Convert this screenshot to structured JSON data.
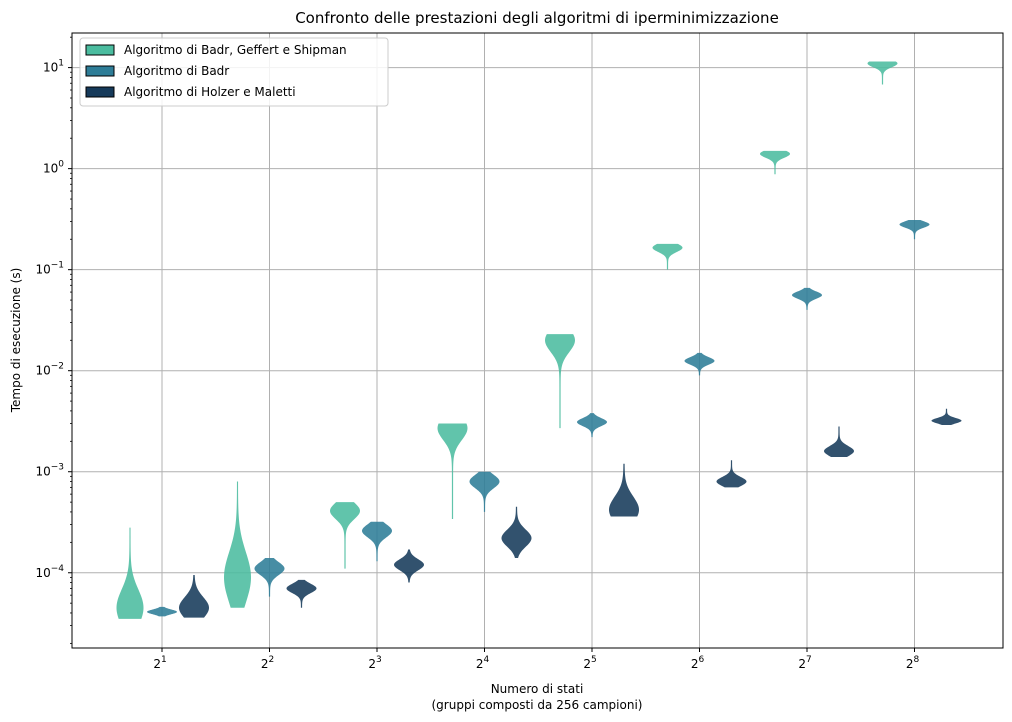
{
  "chart_data": {
    "type": "violin",
    "title": "Confronto delle prestazioni degli algoritmi di iperminimizzazione",
    "xlabel": "Numero di stati",
    "xlabel_sub": "(gruppi composti da 256 campioni)",
    "ylabel": "Tempo di esecuzione (s)",
    "yscale": "log",
    "ylim": [
      1.8e-05,
      22
    ],
    "x_ticks": [
      {
        "base": "2",
        "exp": "1"
      },
      {
        "base": "2",
        "exp": "2"
      },
      {
        "base": "2",
        "exp": "3"
      },
      {
        "base": "2",
        "exp": "4"
      },
      {
        "base": "2",
        "exp": "5"
      },
      {
        "base": "2",
        "exp": "6"
      },
      {
        "base": "2",
        "exp": "7"
      },
      {
        "base": "2",
        "exp": "8"
      }
    ],
    "y_ticks": [
      {
        "value": 0.0001,
        "base": "10",
        "exp": "−4"
      },
      {
        "value": 0.001,
        "base": "10",
        "exp": "−3"
      },
      {
        "value": 0.01,
        "base": "10",
        "exp": "−2"
      },
      {
        "value": 0.1,
        "base": "10",
        "exp": "−1"
      },
      {
        "value": 1,
        "base": "10",
        "exp": "0"
      },
      {
        "value": 10,
        "base": "10",
        "exp": "1"
      }
    ],
    "grid": true,
    "legend_position": "top-left",
    "series": [
      {
        "name": "Algoritmo di Badr, Geffert e Shipman",
        "color": "#4bbc9f",
        "violins": [
          {
            "n": 2,
            "min": 3.5e-05,
            "max": 0.00028,
            "mode": 4.5e-05,
            "width": 0.9,
            "sharp": 2.5
          },
          {
            "n": 4,
            "min": 4.5e-05,
            "max": 0.0008,
            "mode": 9e-05,
            "width": 0.9,
            "sharp": 2.5
          },
          {
            "n": 8,
            "min": 0.00011,
            "max": 0.0005,
            "mode": 0.00041,
            "width": 1.0,
            "sharp": 4
          },
          {
            "n": 16,
            "min": 0.00034,
            "max": 0.003,
            "mode": 0.0027,
            "width": 1.0,
            "sharp": 4
          },
          {
            "n": 32,
            "min": 0.0027,
            "max": 0.023,
            "mode": 0.02,
            "width": 1.0,
            "sharp": 4
          },
          {
            "n": 64,
            "min": 0.1,
            "max": 0.18,
            "mode": 0.165,
            "width": 1.0,
            "sharp": 3
          },
          {
            "n": 128,
            "min": 0.88,
            "max": 1.5,
            "mode": 1.4,
            "width": 1.0,
            "sharp": 3
          },
          {
            "n": 256,
            "min": 6.8,
            "max": 11.5,
            "mode": 11.0,
            "width": 1.0,
            "sharp": 3
          }
        ]
      },
      {
        "name": "Algoritmo di Badr",
        "color": "#2e7d97",
        "violins": [
          {
            "n": 2,
            "min": 3.7e-05,
            "max": 4.6e-05,
            "mode": 4.1e-05,
            "width": 1.0,
            "sharp": 2
          },
          {
            "n": 4,
            "min": 5.8e-05,
            "max": 0.00014,
            "mode": 0.00011,
            "width": 1.0,
            "sharp": 3
          },
          {
            "n": 8,
            "min": 0.00013,
            "max": 0.00032,
            "mode": 0.00026,
            "width": 1.0,
            "sharp": 3
          },
          {
            "n": 16,
            "min": 0.0004,
            "max": 0.001,
            "mode": 0.0008,
            "width": 1.0,
            "sharp": 3
          },
          {
            "n": 32,
            "min": 0.0022,
            "max": 0.0038,
            "mode": 0.0031,
            "width": 1.0,
            "sharp": 3
          },
          {
            "n": 64,
            "min": 0.009,
            "max": 0.015,
            "mode": 0.0125,
            "width": 1.0,
            "sharp": 3
          },
          {
            "n": 128,
            "min": 0.04,
            "max": 0.066,
            "mode": 0.056,
            "width": 1.0,
            "sharp": 3
          },
          {
            "n": 256,
            "min": 0.2,
            "max": 0.31,
            "mode": 0.28,
            "width": 1.0,
            "sharp": 3
          }
        ]
      },
      {
        "name": "Algoritmo di Holzer e Maletti",
        "color": "#163a5a",
        "violins": [
          {
            "n": 2,
            "min": 3.6e-05,
            "max": 9.5e-05,
            "mode": 4.5e-05,
            "width": 1.0,
            "sharp": 2
          },
          {
            "n": 4,
            "min": 4.5e-05,
            "max": 8.5e-05,
            "mode": 7e-05,
            "width": 1.0,
            "sharp": 3
          },
          {
            "n": 8,
            "min": 8e-05,
            "max": 0.00017,
            "mode": 0.00012,
            "width": 1.0,
            "sharp": 3
          },
          {
            "n": 16,
            "min": 0.00014,
            "max": 0.00045,
            "mode": 0.00022,
            "width": 1.0,
            "sharp": 3
          },
          {
            "n": 32,
            "min": 0.00036,
            "max": 0.0012,
            "mode": 0.00042,
            "width": 1.0,
            "sharp": 2
          },
          {
            "n": 64,
            "min": 0.0007,
            "max": 0.0013,
            "mode": 0.0008,
            "width": 1.0,
            "sharp": 3
          },
          {
            "n": 128,
            "min": 0.0014,
            "max": 0.0028,
            "mode": 0.0016,
            "width": 1.0,
            "sharp": 3
          },
          {
            "n": 256,
            "min": 0.0029,
            "max": 0.0042,
            "mode": 0.0032,
            "width": 1.0,
            "sharp": 3
          }
        ]
      }
    ]
  }
}
